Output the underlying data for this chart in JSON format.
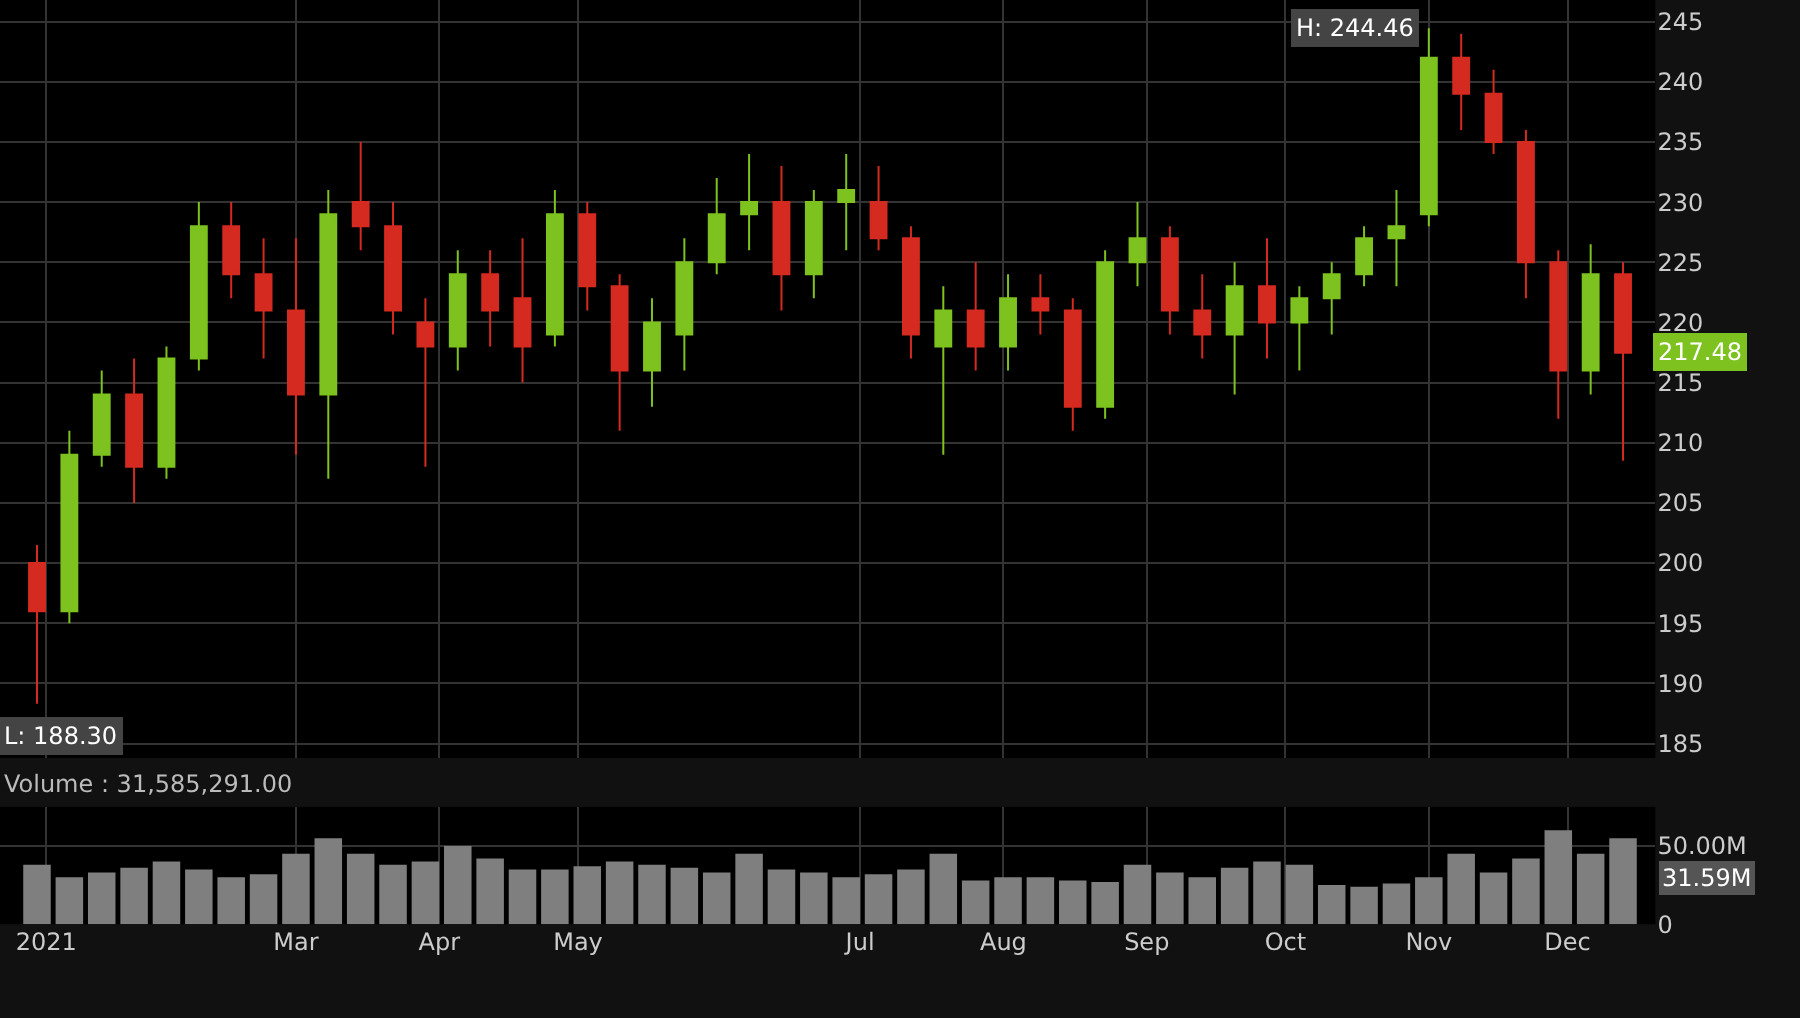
{
  "chart_data": [
    {
      "type": "candlestick",
      "tick_labels": "y",
      "grid": true,
      "x": [
        "2021-01-04",
        "2021-01-11",
        "2021-01-18",
        "2021-01-25",
        "2021-02-01",
        "2021-02-08",
        "2021-02-15",
        "2021-02-22",
        "2021-03-01",
        "2021-03-08",
        "2021-03-15",
        "2021-03-22",
        "2021-03-29",
        "2021-04-05",
        "2021-04-12",
        "2021-04-19",
        "2021-04-26",
        "2021-05-03",
        "2021-05-10",
        "2021-05-17",
        "2021-05-24",
        "2021-05-31",
        "2021-06-07",
        "2021-06-14",
        "2021-06-21",
        "2021-06-28",
        "2021-07-05",
        "2021-07-12",
        "2021-07-19",
        "2021-07-26",
        "2021-08-02",
        "2021-08-09",
        "2021-08-16",
        "2021-08-23",
        "2021-08-30",
        "2021-09-06",
        "2021-09-13",
        "2021-09-20",
        "2021-09-27",
        "2021-10-04",
        "2021-10-11",
        "2021-10-18",
        "2021-10-25",
        "2021-11-01",
        "2021-11-08",
        "2021-11-15",
        "2021-11-22",
        "2021-11-29",
        "2021-12-06",
        "2021-12-13"
      ],
      "ohlc": [
        [
          200,
          201.5,
          188.3,
          196
        ],
        [
          196,
          211,
          195,
          209
        ],
        [
          209,
          216,
          208,
          214
        ],
        [
          214,
          217,
          205,
          208
        ],
        [
          208,
          218,
          207,
          217
        ],
        [
          217,
          230,
          216,
          228
        ],
        [
          228,
          230,
          222,
          224
        ],
        [
          224,
          227,
          217,
          221
        ],
        [
          221,
          227,
          209,
          214
        ],
        [
          214,
          231,
          207,
          229
        ],
        [
          230,
          235,
          226,
          228
        ],
        [
          228,
          230,
          219,
          221
        ],
        [
          220,
          222,
          208,
          218
        ],
        [
          218,
          226,
          216,
          224
        ],
        [
          224,
          226,
          218,
          221
        ],
        [
          222,
          227,
          215,
          218
        ],
        [
          219,
          231,
          218,
          229
        ],
        [
          229,
          230,
          221,
          223
        ],
        [
          223,
          224,
          211,
          216
        ],
        [
          216,
          222,
          213,
          220
        ],
        [
          219,
          227,
          216,
          225
        ],
        [
          225,
          232,
          224,
          229
        ],
        [
          229,
          234,
          226,
          230
        ],
        [
          230,
          233,
          221,
          224
        ],
        [
          224,
          231,
          222,
          230
        ],
        [
          230,
          234,
          226,
          231
        ],
        [
          230,
          233,
          226,
          227
        ],
        [
          227,
          228,
          217,
          219
        ],
        [
          218,
          223,
          209,
          221
        ],
        [
          221,
          225,
          216,
          218
        ],
        [
          218,
          224,
          216,
          222
        ],
        [
          222,
          224,
          219,
          221
        ],
        [
          221,
          222,
          211,
          213
        ],
        [
          213,
          226,
          212,
          225
        ],
        [
          225,
          230,
          223,
          227
        ],
        [
          227,
          228,
          219,
          221
        ],
        [
          221,
          224,
          217,
          219
        ],
        [
          219,
          225,
          214,
          223
        ],
        [
          223,
          227,
          217,
          220
        ],
        [
          220,
          223,
          216,
          222
        ],
        [
          222,
          225,
          219,
          224
        ],
        [
          224,
          228,
          223,
          227
        ],
        [
          227,
          231,
          223,
          228
        ],
        [
          229,
          244.46,
          228,
          242
        ],
        [
          242,
          244,
          236,
          239
        ],
        [
          239,
          241,
          234,
          235
        ],
        [
          235,
          236,
          222,
          225
        ],
        [
          225,
          226,
          212,
          216
        ],
        [
          216,
          226.5,
          214,
          224
        ],
        [
          224,
          225,
          208.5,
          217.48
        ]
      ],
      "colors": [
        "#d42a20",
        "#7dc21e",
        "#7dc21e",
        "#d42a20",
        "#7dc21e",
        "#7dc21e",
        "#d42a20",
        "#d42a20",
        "#d42a20",
        "#7dc21e",
        "#d42a20",
        "#d42a20",
        "#d42a20",
        "#7dc21e",
        "#d42a20",
        "#d42a20",
        "#7dc21e",
        "#d42a20",
        "#d42a20",
        "#7dc21e",
        "#7dc21e",
        "#7dc21e",
        "#7dc21e",
        "#d42a20",
        "#7dc21e",
        "#7dc21e",
        "#d42a20",
        "#d42a20",
        "#7dc21e",
        "#d42a20",
        "#7dc21e",
        "#d42a20",
        "#d42a20",
        "#7dc21e",
        "#7dc21e",
        "#d42a20",
        "#d42a20",
        "#7dc21e",
        "#d42a20",
        "#7dc21e",
        "#7dc21e",
        "#7dc21e",
        "#7dc21e",
        "#7dc21e",
        "#d42a20",
        "#d42a20",
        "#d42a20",
        "#d42a20",
        "#7dc21e",
        "#d42a20"
      ],
      "xlim": [
        "2020-12-27",
        "2021-12-20"
      ],
      "ylim": [
        183.8,
        246.8
      ],
      "yticks": [
        185,
        190,
        195,
        200,
        205,
        210,
        215,
        220,
        225,
        230,
        235,
        240,
        245
      ],
      "annotations": [
        {
          "text": "H: 244.46",
          "x": "2021-11-01",
          "y": 244.46
        },
        {
          "text": "L: 188.30",
          "x": "2021-01-04",
          "y": 188.3
        },
        {
          "text": "217.48",
          "x": "2021-12-13",
          "y": 217.48
        }
      ]
    },
    {
      "type": "bar",
      "title": "Volume : 31,585,291.00",
      "grid": true,
      "color": "#7f7f7f",
      "x": [
        "2021-01-04",
        "2021-01-11",
        "2021-01-18",
        "2021-01-25",
        "2021-02-01",
        "2021-02-08",
        "2021-02-15",
        "2021-02-22",
        "2021-03-01",
        "2021-03-08",
        "2021-03-15",
        "2021-03-22",
        "2021-03-29",
        "2021-04-05",
        "2021-04-12",
        "2021-04-19",
        "2021-04-26",
        "2021-05-03",
        "2021-05-10",
        "2021-05-17",
        "2021-05-24",
        "2021-05-31",
        "2021-06-07",
        "2021-06-14",
        "2021-06-21",
        "2021-06-28",
        "2021-07-05",
        "2021-07-12",
        "2021-07-19",
        "2021-07-26",
        "2021-08-02",
        "2021-08-09",
        "2021-08-16",
        "2021-08-23",
        "2021-08-30",
        "2021-09-06",
        "2021-09-13",
        "2021-09-20",
        "2021-09-27",
        "2021-10-04",
        "2021-10-11",
        "2021-10-18",
        "2021-10-25",
        "2021-11-01",
        "2021-11-08",
        "2021-11-15",
        "2021-11-22",
        "2021-11-29",
        "2021-12-06",
        "2021-12-13"
      ],
      "values": [
        38,
        30,
        33,
        36,
        40,
        35,
        30,
        32,
        45,
        55,
        45,
        38,
        40,
        50,
        42,
        35,
        35,
        37,
        40,
        38,
        36,
        33,
        45,
        35,
        33,
        30,
        32,
        35,
        45,
        28,
        30,
        30,
        28,
        27,
        38,
        33,
        30,
        36,
        40,
        38,
        25,
        24,
        26,
        30,
        45,
        33,
        42,
        60,
        45,
        55
      ],
      "xlim": [
        "2020-12-27",
        "2021-12-20"
      ],
      "xticks": [
        {
          "value": "2021-01-06",
          "label": "2021"
        },
        {
          "value": "2021-03-01",
          "label": "Mar"
        },
        {
          "value": "2021-04-01",
          "label": "Apr"
        },
        {
          "value": "2021-05-01",
          "label": "May"
        },
        {
          "value": "2021-07-01",
          "label": "Jul"
        },
        {
          "value": "2021-08-01",
          "label": "Aug"
        },
        {
          "value": "2021-09-01",
          "label": "Sep"
        },
        {
          "value": "2021-10-01",
          "label": "Oct"
        },
        {
          "value": "2021-11-01",
          "label": "Nov"
        },
        {
          "value": "2021-12-01",
          "label": "Dec"
        }
      ],
      "ylim": [
        0,
        75
      ],
      "yticks": [
        {
          "value": 0,
          "label": "0"
        },
        {
          "value": 50,
          "label": "50.00M"
        }
      ],
      "annotations": [
        "31.59M"
      ]
    }
  ]
}
